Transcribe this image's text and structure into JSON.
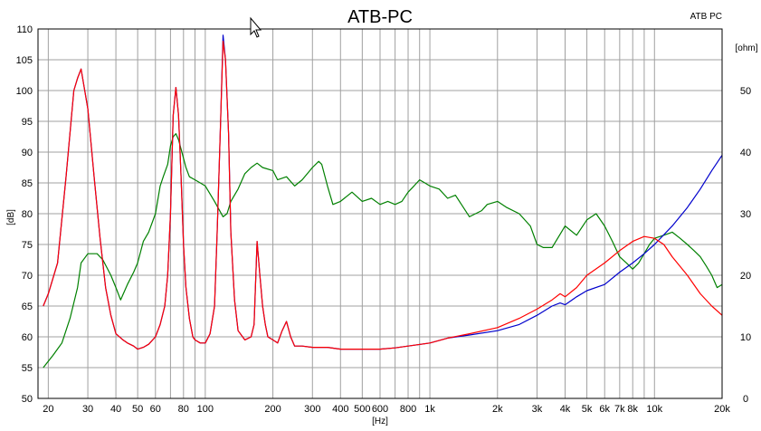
{
  "chart_data": {
    "type": "line",
    "title": "ATB-PC",
    "corner_label": "ATB PC",
    "xlabel": "[Hz]",
    "ylabel": "[dB]",
    "y2label": "[ohm]",
    "x_scale": "log",
    "xlim": [
      18,
      20000
    ],
    "ylim": [
      50,
      110
    ],
    "y2lim": [
      0,
      60
    ],
    "grid": true,
    "legend": "none",
    "colors": {
      "red": "#ff0000",
      "blue": "#0000cc",
      "green": "#008000",
      "grid": "#a0a0a0"
    },
    "x_ticks": [
      {
        "v": 20,
        "label": "20"
      },
      {
        "v": 30,
        "label": "30"
      },
      {
        "v": 40,
        "label": "40"
      },
      {
        "v": 50,
        "label": "50"
      },
      {
        "v": 60,
        "label": "60"
      },
      {
        "v": 80,
        "label": "80"
      },
      {
        "v": 100,
        "label": "100"
      },
      {
        "v": 200,
        "label": "200"
      },
      {
        "v": 300,
        "label": "300"
      },
      {
        "v": 400,
        "label": "400"
      },
      {
        "v": 500,
        "label": "500"
      },
      {
        "v": 600,
        "label": "600"
      },
      {
        "v": 800,
        "label": "800"
      },
      {
        "v": 1000,
        "label": "1k"
      },
      {
        "v": 2000,
        "label": "2k"
      },
      {
        "v": 3000,
        "label": "3k"
      },
      {
        "v": 4000,
        "label": "4k"
      },
      {
        "v": 5000,
        "label": "5k"
      },
      {
        "v": 6000,
        "label": "6k"
      },
      {
        "v": 7000,
        "label": "7k"
      },
      {
        "v": 8000,
        "label": "8k"
      },
      {
        "v": 10000,
        "label": "10k"
      },
      {
        "v": 20000,
        "label": "20k"
      }
    ],
    "x_gridlines": [
      20,
      30,
      40,
      50,
      60,
      70,
      80,
      90,
      100,
      200,
      300,
      400,
      500,
      600,
      700,
      800,
      900,
      1000,
      2000,
      3000,
      4000,
      5000,
      6000,
      7000,
      8000,
      9000,
      10000,
      20000
    ],
    "y_ticks": [
      50,
      55,
      60,
      65,
      70,
      75,
      80,
      85,
      90,
      95,
      100,
      105,
      110
    ],
    "y2_ticks": [
      0,
      10,
      20,
      30,
      40,
      50
    ],
    "series": [
      {
        "color": "#008000",
        "axis": "left",
        "x": [
          19,
          21,
          23,
          25,
          27,
          28,
          30,
          31,
          33,
          35,
          38,
          40,
          42,
          45,
          48,
          50,
          53,
          56,
          60,
          63,
          65,
          68,
          70,
          72,
          74,
          76,
          78,
          80,
          82,
          85,
          90,
          95,
          100,
          110,
          120,
          125,
          130,
          140,
          150,
          160,
          170,
          180,
          200,
          210,
          230,
          250,
          270,
          300,
          320,
          330,
          350,
          370,
          400,
          450,
          500,
          550,
          600,
          650,
          700,
          750,
          800,
          850,
          900,
          950,
          1000,
          1100,
          1200,
          1300,
          1500,
          1700,
          1800,
          2000,
          2200,
          2500,
          2800,
          3000,
          3200,
          3500,
          4000,
          4500,
          5000,
          5500,
          6000,
          6500,
          7000,
          7500,
          8000,
          8500,
          9000,
          9500,
          10000,
          11000,
          12000,
          13000,
          14000,
          15000,
          16000,
          17000,
          18000,
          19000,
          20000
        ],
        "y": [
          55,
          57,
          59,
          63,
          68,
          72,
          73.5,
          73.5,
          73.5,
          72.5,
          70,
          68,
          66,
          68.5,
          70.5,
          72,
          75.5,
          77,
          80,
          84.5,
          86,
          88,
          91,
          92.5,
          93,
          92,
          90.5,
          89,
          87.5,
          86,
          85.5,
          85,
          84.5,
          82,
          79.5,
          80,
          82,
          84,
          86.5,
          87.5,
          88.2,
          87.5,
          87,
          85.5,
          86,
          84.5,
          85.5,
          87.5,
          88.5,
          88,
          84.5,
          81.5,
          82,
          83.5,
          82,
          82.5,
          81.5,
          82,
          81.5,
          82,
          83.5,
          84.5,
          85.5,
          85,
          84.5,
          84,
          82.5,
          83,
          79.5,
          80.5,
          81.5,
          82,
          81,
          80,
          78,
          75,
          74.5,
          74.5,
          78,
          76.5,
          79,
          80,
          78,
          75.5,
          73,
          72,
          71,
          72,
          73.5,
          75,
          76,
          76.5,
          77,
          76,
          75,
          74,
          73,
          71.5,
          70,
          68,
          68.5
        ]
      },
      {
        "color": "#0000cc",
        "axis": "left",
        "x": [
          19,
          20,
          22,
          24,
          26,
          27,
          28,
          30,
          32,
          34,
          36,
          38,
          40,
          43,
          45,
          48,
          50,
          53,
          56,
          60,
          63,
          66,
          68,
          70,
          72,
          74,
          76,
          78,
          80,
          82,
          85,
          88,
          90,
          95,
          100,
          105,
          110,
          113,
          117,
          120,
          123,
          127,
          130,
          135,
          140,
          150,
          160,
          165,
          170,
          175,
          180,
          185,
          190,
          200,
          210,
          220,
          230,
          240,
          250,
          270,
          300,
          350,
          400,
          450,
          500,
          600,
          700,
          800,
          1000,
          1200,
          1500,
          2000,
          2500,
          3000,
          3500,
          3800,
          4000,
          4500,
          5000,
          6000,
          7000,
          8000,
          9000,
          10000,
          12000,
          14000,
          16000,
          18000,
          20000
        ],
        "y": [
          65,
          67,
          72,
          86,
          100,
          102,
          103.5,
          97,
          86,
          76,
          68,
          63.5,
          60.5,
          59.5,
          59,
          58.5,
          58,
          58.3,
          58.8,
          60,
          62,
          65,
          70,
          80,
          96,
          100.5,
          96,
          86,
          75,
          68,
          63,
          60,
          59.5,
          59,
          59,
          60.5,
          65,
          77,
          95,
          109,
          105,
          93,
          77,
          66,
          61,
          59.5,
          60,
          62,
          75.5,
          70,
          65,
          62,
          60,
          59.5,
          59,
          61,
          62.5,
          60,
          58.5,
          58.5,
          58.3,
          58.3,
          58,
          58,
          58,
          58,
          58.2,
          58.5,
          59,
          59.8,
          60.3,
          61,
          62,
          63.5,
          65,
          65.5,
          65.2,
          66.5,
          67.5,
          68.5,
          70.5,
          72,
          73.5,
          75,
          78,
          81,
          84,
          87,
          89.5
        ]
      },
      {
        "color": "#ff0000",
        "axis": "left",
        "x": [
          19,
          20,
          22,
          24,
          26,
          27,
          28,
          30,
          32,
          34,
          36,
          38,
          40,
          43,
          45,
          48,
          50,
          53,
          56,
          60,
          63,
          66,
          68,
          70,
          72,
          74,
          76,
          78,
          80,
          82,
          85,
          88,
          90,
          95,
          100,
          105,
          110,
          113,
          117,
          120,
          123,
          127,
          130,
          135,
          140,
          150,
          160,
          165,
          170,
          175,
          180,
          185,
          190,
          200,
          210,
          220,
          230,
          240,
          250,
          270,
          300,
          350,
          400,
          450,
          500,
          600,
          700,
          800,
          1000,
          1200,
          1500,
          2000,
          2500,
          3000,
          3500,
          3800,
          4000,
          4500,
          5000,
          6000,
          7000,
          8000,
          9000,
          10000,
          11000,
          12000,
          14000,
          16000,
          18000,
          20000
        ],
        "y": [
          65,
          67,
          72,
          86,
          100,
          102,
          103.5,
          97,
          86,
          76,
          68,
          63.5,
          60.5,
          59.5,
          59,
          58.5,
          58,
          58.3,
          58.8,
          60,
          62,
          65,
          70,
          80,
          96,
          100.5,
          96,
          86,
          75,
          68,
          63,
          60,
          59.5,
          59,
          59,
          60.5,
          65,
          77,
          95,
          108,
          105,
          93,
          77,
          66,
          61,
          59.5,
          60,
          62,
          75.5,
          70,
          65,
          62,
          60,
          59.5,
          59,
          61,
          62.5,
          60,
          58.5,
          58.5,
          58.3,
          58.3,
          58,
          58,
          58,
          58,
          58.2,
          58.5,
          59,
          59.8,
          60.5,
          61.5,
          63,
          64.5,
          66,
          67,
          66.5,
          68,
          70,
          72,
          74,
          75.5,
          76.3,
          76,
          75,
          73,
          70,
          67,
          65,
          63.5
        ]
      }
    ]
  }
}
